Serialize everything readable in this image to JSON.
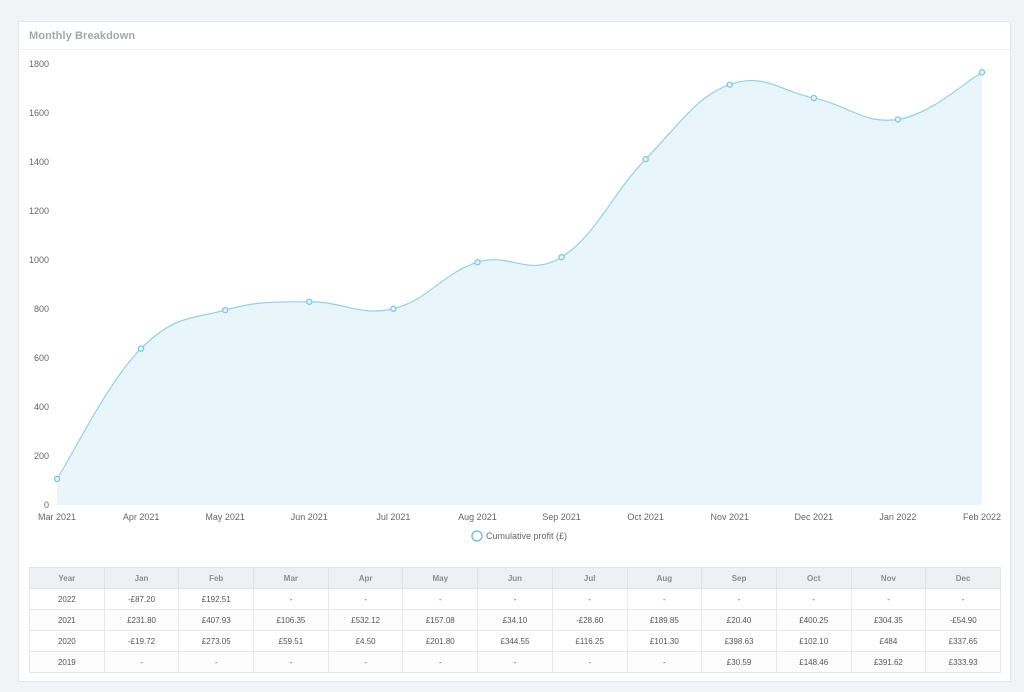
{
  "card": {
    "title": "Monthly Breakdown"
  },
  "chart_data": {
    "type": "area",
    "title": "",
    "xlabel": "",
    "ylabel": "",
    "ylim": [
      0,
      1800
    ],
    "yticks": [
      "0",
      "200",
      "400",
      "600",
      "800",
      "1000",
      "1200",
      "1400",
      "1600",
      "1800"
    ],
    "categories": [
      "Mar 2021",
      "Apr 2021",
      "May 2021",
      "Jun 2021",
      "Jul 2021",
      "Aug 2021",
      "Sep 2021",
      "Oct 2021",
      "Nov 2021",
      "Dec 2021",
      "Jan 2022",
      "Feb 2022"
    ],
    "series": [
      {
        "name": "Cumulative profit (£)",
        "values": [
          106.35,
          638.47,
          795.55,
          829.65,
          801.05,
          990.9,
          1011.3,
          1411.55,
          1715.9,
          1661.0,
          1573.8,
          1766.31
        ]
      }
    ],
    "legend": "bottom-center",
    "grid": false,
    "colors": {
      "line": "#95cfe6",
      "fill": "#e8f6fc",
      "marker": "#7fc3df"
    }
  },
  "table": {
    "headers": [
      "Year",
      "Jan",
      "Feb",
      "Mar",
      "Apr",
      "May",
      "Jun",
      "Jul",
      "Aug",
      "Sep",
      "Oct",
      "Nov",
      "Dec"
    ],
    "rows": [
      [
        "2022",
        "-£87.20",
        "£192.51",
        "-",
        "-",
        "-",
        "-",
        "-",
        "-",
        "-",
        "-",
        "-",
        "-"
      ],
      [
        "2021",
        "£231.80",
        "£407.93",
        "£106.35",
        "£532.12",
        "£157.08",
        "£34.10",
        "-£28.60",
        "£189.85",
        "£20.40",
        "£400.25",
        "£304.35",
        "-£54.90"
      ],
      [
        "2020",
        "-£19.72",
        "£273.05",
        "£59.51",
        "£4.50",
        "£201.80",
        "£344.55",
        "£116.25",
        "£101.30",
        "£398.63",
        "£102.10",
        "£484",
        "£337.65"
      ],
      [
        "2019",
        "-",
        "-",
        "-",
        "-",
        "-",
        "-",
        "-",
        "-",
        "£30.59",
        "£148.46",
        "£391.62",
        "£333.93"
      ]
    ]
  }
}
